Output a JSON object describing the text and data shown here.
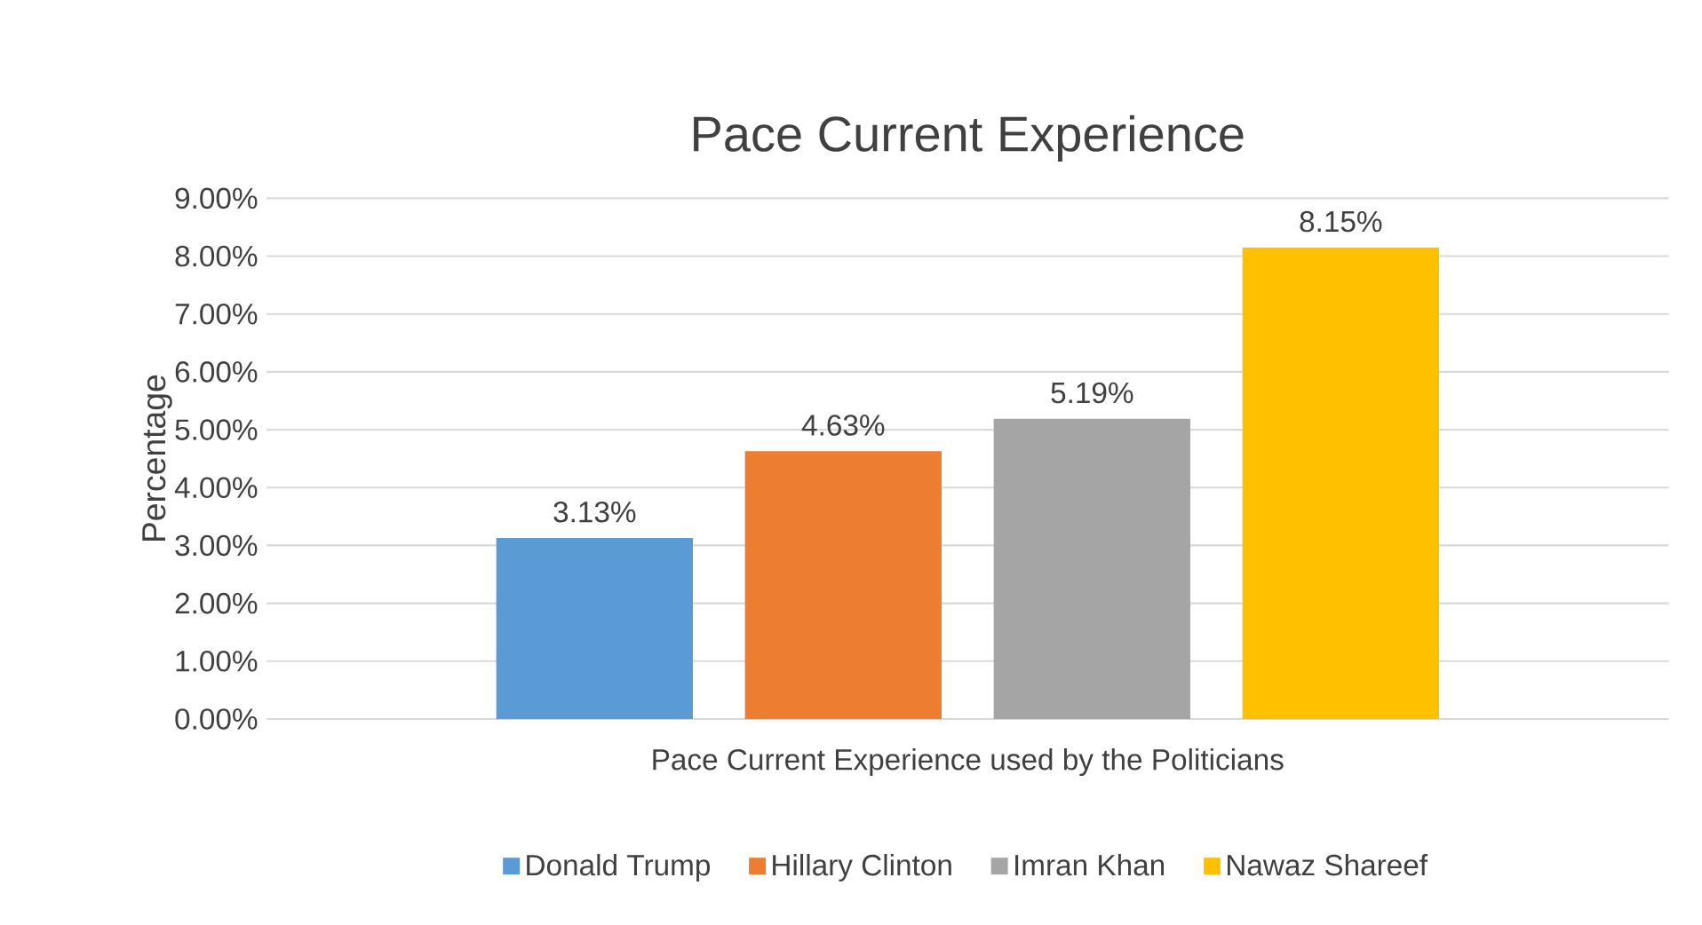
{
  "chart_data": {
    "type": "bar",
    "title": "Pace Current Experience",
    "xlabel": "Pace Current Experience used by the Politicians",
    "ylabel": "Percentage",
    "categories": [
      null
    ],
    "series": [
      {
        "name": "Donald Trump",
        "color": "#5b9bd5",
        "values": [
          3.13
        ],
        "value_labels": [
          "3.13%"
        ]
      },
      {
        "name": "Hillary Clinton",
        "color": "#ed7d31",
        "values": [
          4.63
        ],
        "value_labels": [
          "4.63%"
        ]
      },
      {
        "name": "Imran Khan",
        "color": "#a5a5a5",
        "values": [
          5.19
        ],
        "value_labels": [
          "5.19%"
        ]
      },
      {
        "name": "Nawaz Shareef",
        "color": "#ffc000",
        "values": [
          8.15
        ],
        "value_labels": [
          "8.15%"
        ]
      }
    ],
    "ylim": [
      0,
      9
    ],
    "yticks": [
      {
        "value": 0,
        "label": "0.00%"
      },
      {
        "value": 1,
        "label": "1.00%"
      },
      {
        "value": 2,
        "label": "2.00%"
      },
      {
        "value": 3,
        "label": "3.00%"
      },
      {
        "value": 4,
        "label": "4.00%"
      },
      {
        "value": 5,
        "label": "5.00%"
      },
      {
        "value": 6,
        "label": "6.00%"
      },
      {
        "value": 7,
        "label": "7.00%"
      },
      {
        "value": 8,
        "label": "8.00%"
      },
      {
        "value": 9,
        "label": "9.00%"
      }
    ],
    "grid": "y",
    "legend": "bottom"
  }
}
